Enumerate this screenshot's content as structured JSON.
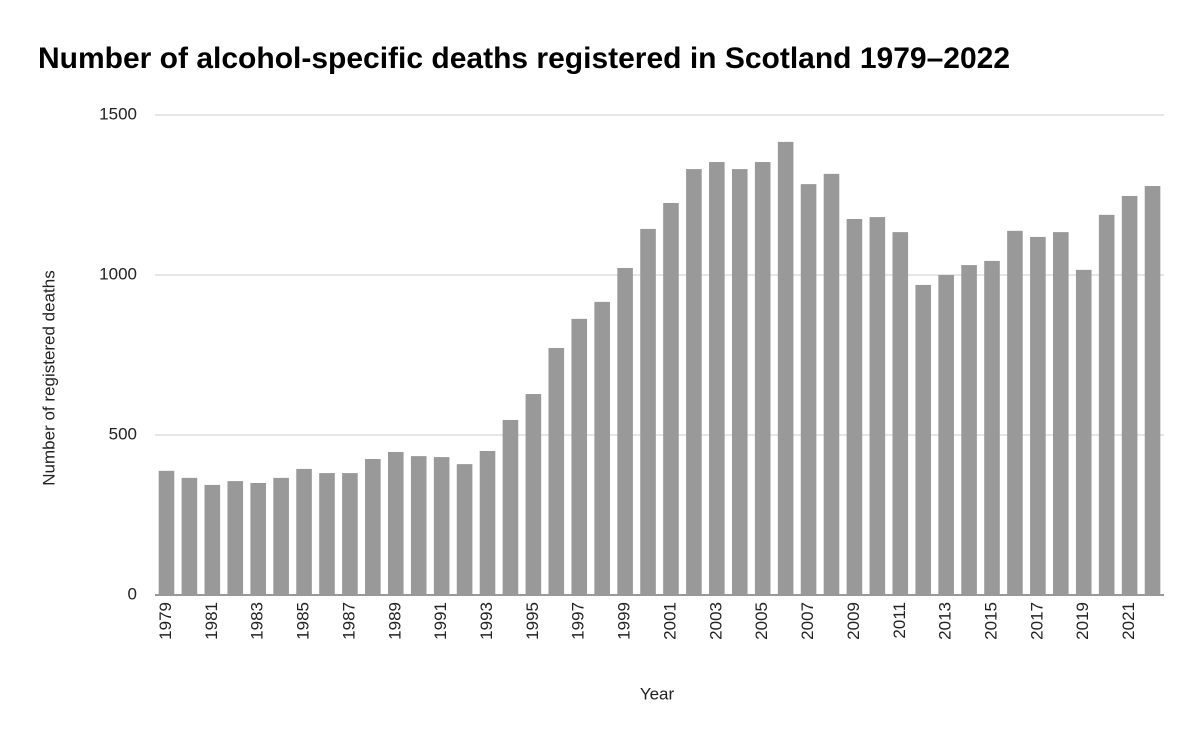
{
  "chart_data": {
    "type": "bar",
    "title": "Number of alcohol-specific deaths registered in Scotland 1979–2022",
    "x_label": "Year",
    "y_label": "Number of registered deaths",
    "categories": [
      "1979",
      null,
      "1981",
      null,
      "1983",
      null,
      "1985",
      null,
      "1987",
      null,
      "1989",
      null,
      "1991",
      null,
      "1993",
      null,
      "1995",
      null,
      "1997",
      null,
      "1999",
      null,
      "2001",
      null,
      "2003",
      null,
      "2005",
      null,
      "2007",
      null,
      "2009",
      null,
      "2011",
      null,
      "2013",
      null,
      "2015",
      null,
      "2017",
      null,
      "2019",
      null,
      "2021",
      null
    ],
    "values": [
      388,
      366,
      344,
      356,
      350,
      366,
      394,
      381,
      381,
      425,
      447,
      434,
      431,
      409,
      450,
      547,
      628,
      772,
      863,
      916,
      1022,
      1144,
      1225,
      1331,
      1353,
      1331,
      1353,
      1416,
      1284,
      1316,
      1175,
      1181,
      1134,
      969,
      1000,
      1031,
      1044,
      1138,
      1119,
      1134,
      1016,
      1188,
      1247,
      1278
    ],
    "color": "#999999",
    "ylim": [
      0,
      1500
    ],
    "yticks": [
      0,
      500,
      1000,
      1500
    ],
    "grid": true
  }
}
